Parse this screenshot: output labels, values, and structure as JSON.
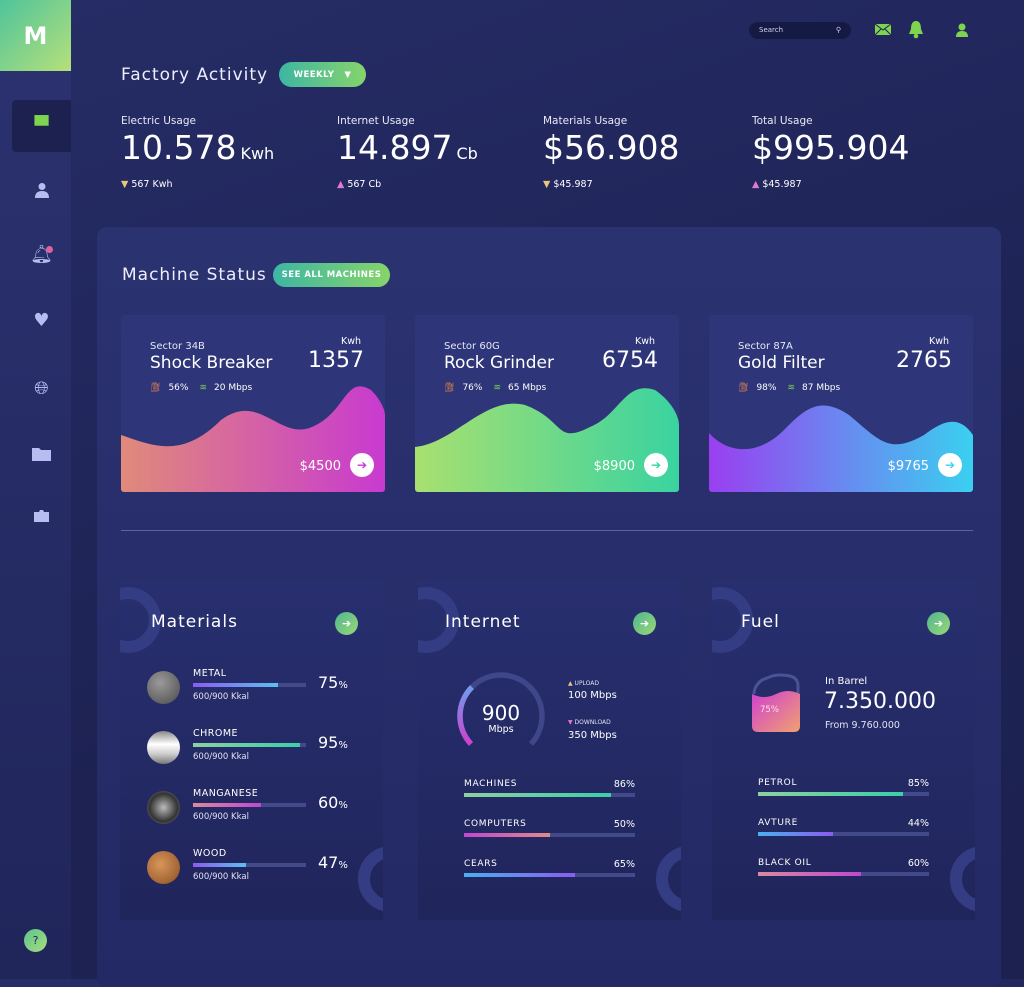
{
  "sidebar": {
    "logo": "M",
    "items": [
      {
        "icon": "presentation-icon",
        "active": true
      },
      {
        "icon": "user-icon"
      },
      {
        "icon": "bell-icon",
        "badge": true
      },
      {
        "icon": "heart-icon"
      },
      {
        "icon": "globe-icon"
      },
      {
        "icon": "folder-icon"
      },
      {
        "icon": "briefcase-icon"
      }
    ],
    "help": "?"
  },
  "topbar": {
    "search_placeholder": "Search",
    "icons": [
      "search-icon",
      "mail-icon",
      "bell-icon",
      "user-icon"
    ],
    "icon_color": "#7ed34f"
  },
  "header": {
    "title": "Factory Activity",
    "period": "WEEKLY",
    "period_arrow": "▼"
  },
  "stats": [
    {
      "label": "Electric Usage",
      "value": "10.578",
      "unit": "Kwh",
      "change": "567 Kwh",
      "dir": "▼",
      "dir_color": "#e8c77a"
    },
    {
      "label": "Internet Usage",
      "value": "14.897",
      "unit": "Cb",
      "change": "567 Cb",
      "dir": "▲",
      "dir_color": "#e07ad0"
    },
    {
      "label": "Materials Usage",
      "value": "$56.908",
      "unit": "",
      "change": "$45.987",
      "dir": "▼",
      "dir_color": "#e8c77a"
    },
    {
      "label": "Total Usage",
      "value": "$995.904",
      "unit": "",
      "change": "$45.987",
      "dir": "▲",
      "dir_color": "#e07ad0"
    }
  ],
  "machine_status": {
    "title": "Machine Status",
    "see_all": "SEE ALL MACHINES",
    "machines": [
      {
        "sector": "Sector 34B",
        "name": "Shock Breaker",
        "kwh_label": "Kwh",
        "kwh": "1357",
        "fuel": "56%",
        "speed": "20 Mbps",
        "price": "$4500",
        "colors": [
          "#e08a7a",
          "#c83ad0"
        ]
      },
      {
        "sector": "Sector 60G",
        "name": "Rock Grinder",
        "kwh_label": "Kwh",
        "kwh": "6754",
        "fuel": "76%",
        "speed": "65 Mbps",
        "price": "$8900",
        "colors": [
          "#a8e070",
          "#3ad3a0"
        ]
      },
      {
        "sector": "Sector 87A",
        "name": "Gold Filter",
        "kwh_label": "Kwh",
        "kwh": "2765",
        "fuel": "98%",
        "speed": "87 Mbps",
        "price": "$9765",
        "colors": [
          "#9a3ff0",
          "#3ad0f0"
        ]
      }
    ]
  },
  "materials": {
    "title": "Materials",
    "items": [
      {
        "name": "METAL",
        "sub": "600/900 Kkal",
        "pct": 75,
        "pct_label": "75",
        "colors": [
          "#8a5cf0",
          "#5cc0f0"
        ],
        "img": "#6c6c6c"
      },
      {
        "name": "CHROME",
        "sub": "600/900 Kkal",
        "pct": 95,
        "pct_label": "95",
        "colors": [
          "#8ed0a0",
          "#3ad0a8"
        ],
        "img": "#e0e0e6"
      },
      {
        "name": "MANGANESE",
        "sub": "600/900 Kkal",
        "pct": 60,
        "pct_label": "60",
        "colors": [
          "#d88aa0",
          "#c048d0"
        ],
        "img": "#7a7a7e"
      },
      {
        "name": "WOOD",
        "sub": "600/900 Kkal",
        "pct": 47,
        "pct_label": "47",
        "colors": [
          "#8a5cf0",
          "#5cc0f0"
        ],
        "img": "#b5753c"
      }
    ],
    "pct_sign": "%"
  },
  "internet": {
    "title": "Internet",
    "speed": "900",
    "speed_unit": "Mbps",
    "gauge_fraction": 0.33,
    "upload_label": "UPLOAD",
    "upload": "100 Mbps",
    "download_label": "DOWNLOAD",
    "download": "350 Mbps",
    "bars": [
      {
        "name": "MACHINES",
        "pct": 86,
        "label": "86%",
        "colors": [
          "#8ed0a0",
          "#3ad0a8"
        ]
      },
      {
        "name": "COMPUTERS",
        "pct": 50,
        "label": "50%",
        "colors": [
          "#c048d0",
          "#e08a8a"
        ]
      },
      {
        "name": "CEARS",
        "pct": 65,
        "label": "65%",
        "colors": [
          "#4ab0f0",
          "#8a5cf0"
        ]
      }
    ]
  },
  "fuel": {
    "title": "Fuel",
    "tank_pct": "75%",
    "in_barrel_label": "In Barrel",
    "amount": "7.350.000",
    "from": "From 9.760.000",
    "bars": [
      {
        "name": "PETROL",
        "pct": 85,
        "label": "85%",
        "colors": [
          "#8ed0a0",
          "#3ad0a8"
        ]
      },
      {
        "name": "AVTURE",
        "pct": 44,
        "label": "44%",
        "colors": [
          "#4ab0f0",
          "#8a5cf0"
        ]
      },
      {
        "name": "BLACK OIL",
        "pct": 60,
        "label": "60%",
        "colors": [
          "#d88aa0",
          "#c048d0"
        ]
      }
    ]
  }
}
